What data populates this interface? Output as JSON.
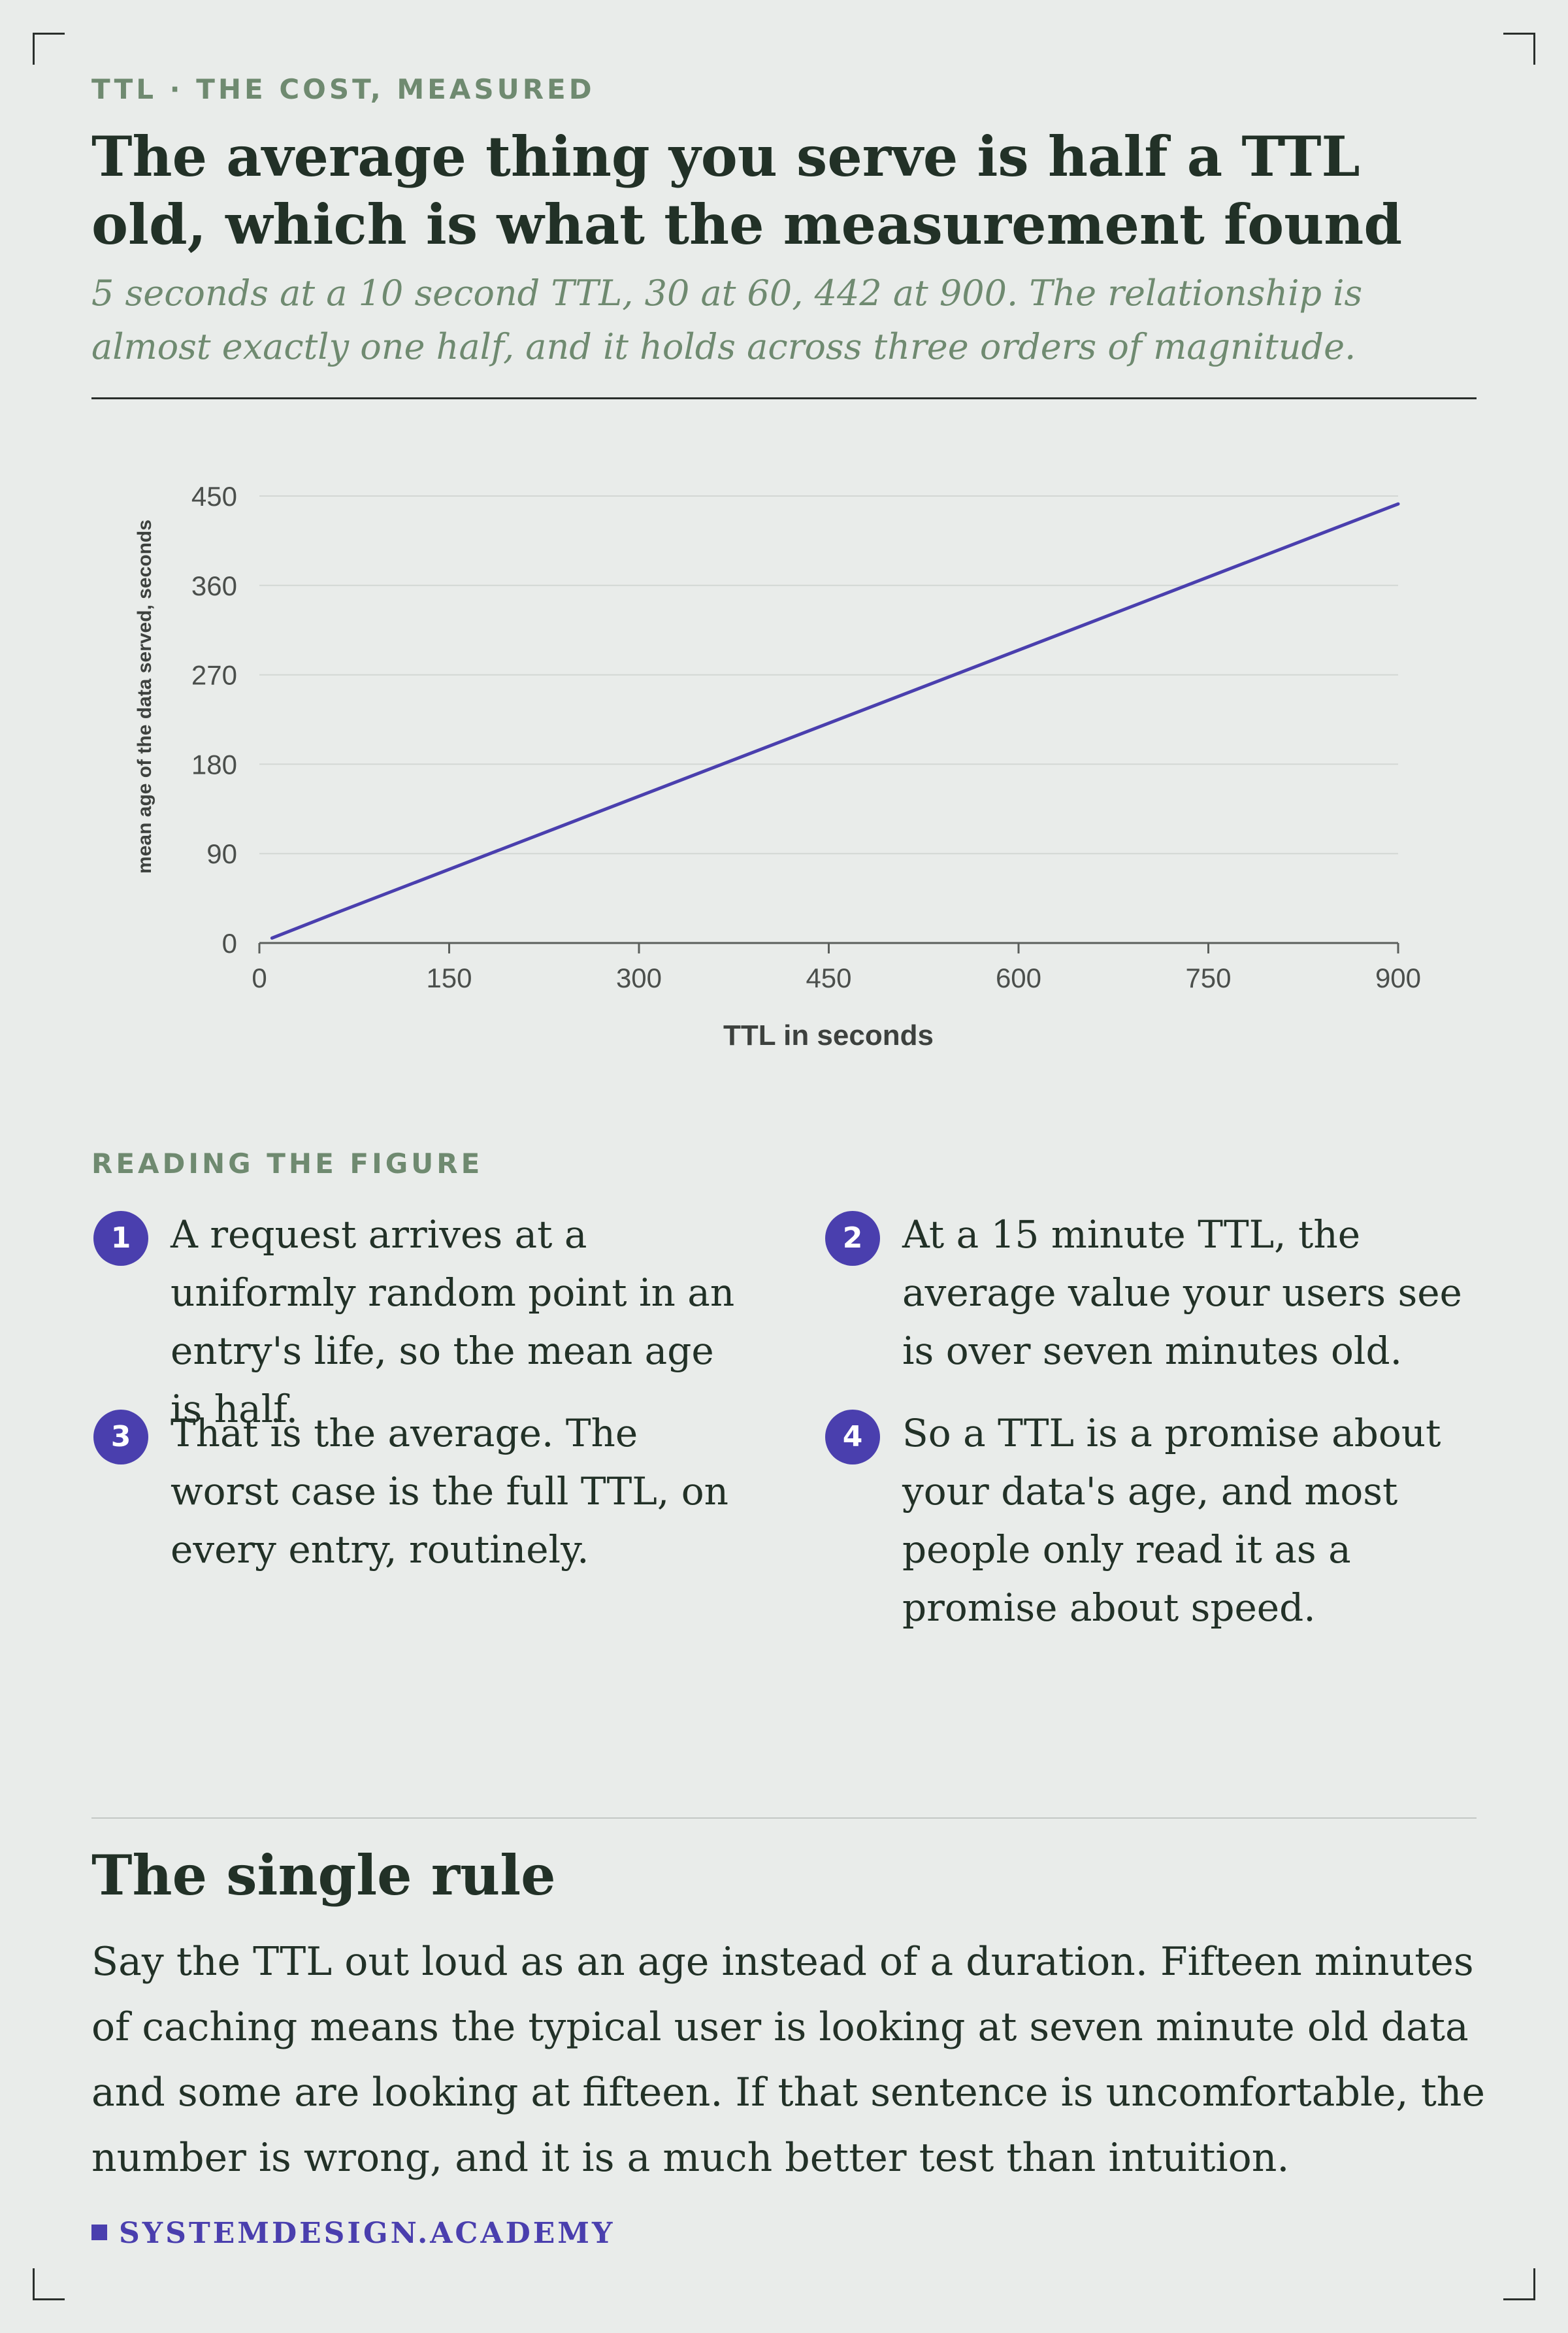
{
  "header": {
    "eyebrow": "TTL · THE COST, MEASURED",
    "title": "The average thing you serve is half a TTL old, which is what the measurement found",
    "subtitle": "5 seconds at a 10 second TTL, 30 at 60, 442 at 900. The relationship is almost exactly one half, and it holds across three orders of magnitude."
  },
  "chart_data": {
    "type": "line",
    "title": "",
    "xlabel": "TTL in seconds",
    "ylabel": "mean age of the data served, seconds",
    "xlim": [
      0,
      900
    ],
    "ylim": [
      0,
      450
    ],
    "xticks": [
      0,
      150,
      300,
      450,
      600,
      750,
      900
    ],
    "yticks": [
      0,
      90,
      180,
      270,
      360,
      450
    ],
    "grid": true,
    "series": [
      {
        "x": [
          10,
          60,
          900
        ],
        "values": [
          5,
          30,
          442
        ],
        "color": "#4a3fae"
      }
    ]
  },
  "reading": {
    "label": "READING THE FIGURE",
    "items": [
      {
        "num": "1",
        "text": "A request arrives at a uniformly random point in an entry's life, so the mean age is half."
      },
      {
        "num": "2",
        "text": "At a 15 minute TTL, the average value your users see is over seven minutes old."
      },
      {
        "num": "3",
        "text": "That is the average. The worst case is the full TTL, on every entry, routinely."
      },
      {
        "num": "4",
        "text": "So a TTL is a promise about your data's age, and most people only read it as a promise about speed."
      }
    ]
  },
  "rule": {
    "heading": "The single rule",
    "body": "Say the TTL out loud as an age instead of a duration. Fifteen minutes of caching means the typical user is looking at seven minute old data and some are looking at fifteen. If that sentence is uncomfortable, the number is wrong, and it is a much better test than intuition."
  },
  "footer": {
    "brand": "SYSTEMDESIGN.ACADEMY"
  },
  "colors": {
    "accent": "#4a3fae",
    "muted_green": "#6f8a70",
    "ink": "#223127",
    "background": "#e9ecea"
  }
}
